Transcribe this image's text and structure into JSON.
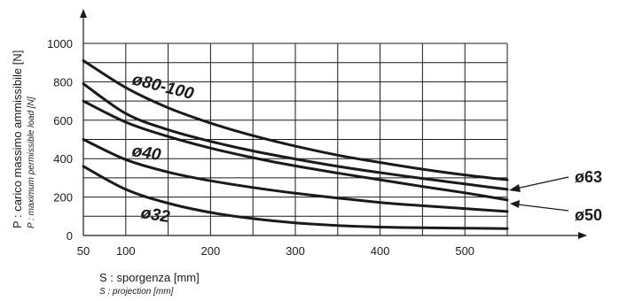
{
  "chart_data": {
    "type": "line",
    "x_ticks": [
      50,
      100,
      200,
      300,
      400,
      500
    ],
    "y_ticks": [
      0,
      200,
      400,
      600,
      800,
      1000
    ],
    "xlim": [
      50,
      550
    ],
    "ylim": [
      0,
      1000
    ],
    "grid": true,
    "xlabel": "S : sporgenza [mm]",
    "xlabel_en": "S : projection [mm]",
    "ylabel": "P : carico massimo ammissibile [N]",
    "ylabel_en": "P : maximum permissible load [N]",
    "series": [
      {
        "name": "ø80-100",
        "x": [
          50,
          100,
          150,
          200,
          250,
          300,
          350,
          400,
          450,
          500,
          550
        ],
        "y": [
          910,
          770,
          665,
          585,
          520,
          465,
          418,
          380,
          345,
          315,
          290
        ]
      },
      {
        "name": "ø63",
        "x": [
          50,
          100,
          150,
          200,
          250,
          300,
          350,
          400,
          450,
          500,
          550
        ],
        "y": [
          790,
          635,
          550,
          490,
          440,
          398,
          360,
          327,
          297,
          268,
          240
        ]
      },
      {
        "name": "ø50",
        "x": [
          50,
          100,
          150,
          200,
          250,
          300,
          350,
          400,
          450,
          500,
          550
        ],
        "y": [
          700,
          590,
          515,
          455,
          405,
          362,
          325,
          290,
          255,
          222,
          185
        ]
      },
      {
        "name": "ø40",
        "x": [
          50,
          100,
          150,
          200,
          250,
          300,
          350,
          400,
          450,
          500,
          550
        ],
        "y": [
          500,
          395,
          330,
          285,
          250,
          220,
          195,
          172,
          155,
          140,
          125
        ]
      },
      {
        "name": "ø32",
        "x": [
          50,
          100,
          150,
          200,
          250,
          300,
          350,
          400,
          450,
          500,
          550
        ],
        "y": [
          360,
          240,
          168,
          120,
          88,
          66,
          52,
          44,
          40,
          38,
          36
        ]
      }
    ]
  }
}
